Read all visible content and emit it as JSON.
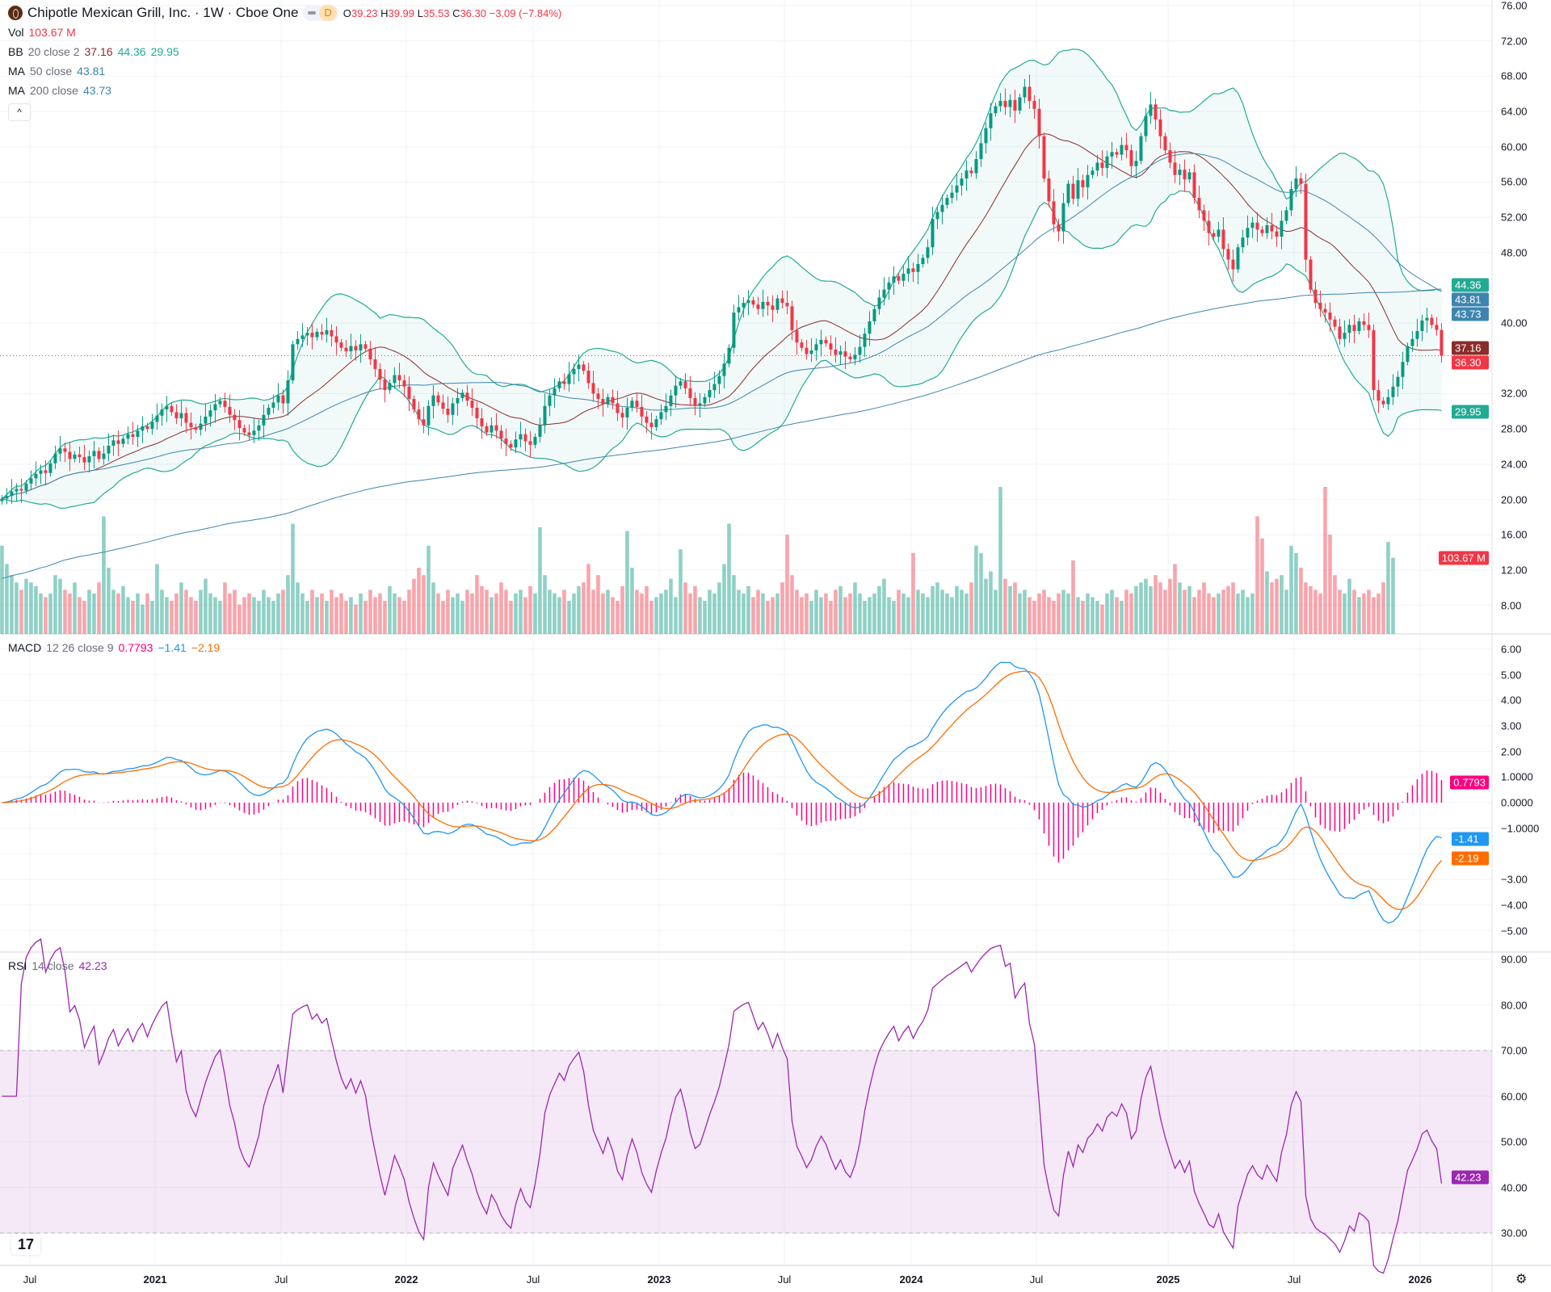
{
  "header": {
    "symbol": "Chipotle Mexican Grill, Inc. · 1W · Cboe One",
    "pill_label": "D",
    "ohlc": {
      "o_label": "O",
      "o": "39.23",
      "h_label": "H",
      "h": "39.99",
      "l_label": "L",
      "l": "35.53",
      "c_label": "C",
      "c": "36.30",
      "change": "−3.09 (−7.84%)"
    }
  },
  "legends": {
    "vol": {
      "name": "Vol",
      "value": "103.67 M"
    },
    "bb": {
      "name": "BB",
      "params": "20 close 2",
      "basis": "37.16",
      "upper": "44.36",
      "lower": "29.95"
    },
    "ma50": {
      "name": "MA",
      "params": "50 close",
      "value": "43.81"
    },
    "ma200": {
      "name": "MA",
      "params": "200 close",
      "value": "43.73"
    },
    "macd": {
      "name": "MACD",
      "params": "12 26 close 9",
      "hist": "0.7793",
      "macd": "−1.41",
      "signal": "−2.19"
    },
    "rsi": {
      "name": "RSI",
      "params": "14 close",
      "value": "42.23"
    }
  },
  "collapse_label": "^",
  "colors": {
    "up": "#089981",
    "down": "#F23645",
    "bb_band": "#22AB94",
    "bb_basis": "#8B2B2B",
    "ma": "#3D85B0",
    "macd": "#2196F3",
    "signal": "#FF6D00",
    "hist": "#FF0080",
    "rsi": "#9C27B0"
  },
  "price_axis": {
    "ticks": [
      "76.00",
      "72.00",
      "68.00",
      "64.00",
      "60.00",
      "56.00",
      "52.00",
      "48.00",
      "40.00",
      "32.00",
      "28.00",
      "24.00",
      "20.00",
      "16.00",
      "12.00",
      "8.00"
    ],
    "tags": [
      {
        "value": "44.36",
        "color": "#22AB94"
      },
      {
        "value": "43.81",
        "color": "#3D85B0"
      },
      {
        "value": "43.73",
        "color": "#3D85B0"
      },
      {
        "value": "37.16",
        "color": "#8B2B2B"
      },
      {
        "value": "36.30",
        "color": "#F23645"
      },
      {
        "value": "29.95",
        "color": "#22AB94"
      }
    ],
    "volume_tag": {
      "value": "103.67 M",
      "color": "#F23645"
    }
  },
  "macd_axis": {
    "ticks": [
      "6.00",
      "5.00",
      "4.00",
      "3.00",
      "2.00",
      "1.0000",
      "0.0000",
      "−1.0000",
      "−3.00",
      "−4.00",
      "−5.00"
    ],
    "tags": [
      {
        "value": "0.7793",
        "color": "#FF0080"
      },
      {
        "value": "-1.41",
        "label": "−1.41",
        "color": "#2196F3"
      },
      {
        "value": "-2.19",
        "label": "−2.19",
        "color": "#FF6D00"
      }
    ]
  },
  "rsi_axis": {
    "ticks": [
      "90.00",
      "80.00",
      "70.00",
      "60.00",
      "50.00",
      "40.00",
      "30.00"
    ],
    "upper_band": 70,
    "lower_band": 30,
    "tag": {
      "value": "42.23",
      "color": "#9C27B0"
    }
  },
  "time_axis": [
    {
      "label": "Jul",
      "year": false
    },
    {
      "label": "2021",
      "year": true
    },
    {
      "label": "Jul",
      "year": false
    },
    {
      "label": "2022",
      "year": true
    },
    {
      "label": "Jul",
      "year": false
    },
    {
      "label": "2023",
      "year": true
    },
    {
      "label": "Jul",
      "year": false
    },
    {
      "label": "2024",
      "year": true
    },
    {
      "label": "Jul",
      "year": false
    },
    {
      "label": "2025",
      "year": true
    },
    {
      "label": "Jul",
      "year": false
    },
    {
      "label": "2026",
      "year": true
    }
  ],
  "chart_data": {
    "type": "candlestick",
    "interval": "1W",
    "ylim": [
      6,
      76
    ],
    "closes": [
      20.1,
      20.4,
      20.9,
      21.2,
      21.0,
      21.8,
      22.4,
      22.9,
      23.3,
      23.0,
      24.1,
      25.2,
      25.8,
      25.4,
      24.6,
      25.1,
      24.8,
      24.2,
      24.9,
      25.5,
      24.6,
      25.2,
      26.1,
      26.7,
      26.3,
      26.9,
      27.4,
      27.1,
      27.8,
      28.3,
      28.0,
      28.8,
      29.5,
      30.2,
      30.6,
      29.9,
      29.2,
      29.8,
      28.7,
      28.2,
      27.9,
      28.6,
      29.4,
      30.1,
      30.8,
      31.2,
      30.5,
      29.6,
      29.0,
      28.1,
      27.6,
      27.3,
      27.8,
      28.4,
      29.6,
      30.4,
      31.0,
      31.8,
      30.9,
      33.5,
      37.6,
      38.2,
      38.6,
      38.9,
      38.4,
      39.0,
      38.7,
      39.2,
      38.5,
      37.8,
      37.2,
      36.8,
      37.4,
      36.9,
      37.6,
      37.1,
      35.9,
      34.8,
      33.6,
      32.4,
      33.2,
      34.1,
      33.5,
      32.8,
      31.4,
      30.2,
      29.1,
      28.4,
      30.6,
      31.8,
      31.0,
      30.3,
      29.6,
      30.9,
      31.5,
      32.1,
      31.2,
      30.4,
      29.2,
      28.3,
      27.6,
      28.4,
      27.8,
      26.9,
      26.3,
      25.9,
      26.8,
      27.4,
      26.6,
      26.2,
      27.1,
      28.4,
      30.6,
      31.8,
      32.6,
      33.4,
      33.1,
      34.2,
      34.8,
      35.3,
      34.6,
      33.2,
      32.0,
      31.4,
      30.8,
      31.6,
      30.9,
      29.8,
      29.3,
      30.4,
      31.2,
      30.5,
      29.4,
      28.7,
      28.2,
      29.1,
      29.9,
      30.6,
      31.8,
      32.9,
      33.4,
      32.6,
      31.5,
      30.7,
      30.9,
      31.6,
      32.4,
      33.1,
      34.0,
      35.4,
      37.2,
      41.2,
      41.8,
      42.3,
      42.6,
      42.1,
      41.6,
      42.4,
      42.0,
      41.5,
      42.8,
      42.3,
      41.9,
      39.2,
      37.8,
      37.2,
      36.5,
      36.9,
      37.6,
      38.1,
      37.7,
      37.0,
      36.4,
      36.8,
      36.2,
      35.9,
      36.4,
      37.3,
      38.8,
      40.2,
      41.6,
      42.9,
      43.8,
      44.6,
      45.3,
      44.8,
      45.6,
      46.2,
      45.8,
      46.7,
      47.4,
      48.6,
      51.8,
      52.6,
      53.4,
      54.2,
      54.8,
      55.6,
      56.4,
      57.3,
      57.0,
      58.6,
      60.4,
      62.1,
      63.8,
      64.6,
      65.2,
      64.5,
      65.3,
      64.1,
      65.6,
      66.8,
      65.2,
      64.3,
      61.2,
      56.4,
      53.8,
      51.2,
      50.4,
      53.6,
      55.8,
      54.1,
      56.2,
      55.4,
      56.8,
      57.3,
      58.2,
      57.6,
      58.9,
      59.4,
      59.1,
      60.2,
      59.6,
      57.8,
      58.4,
      61.2,
      63.5,
      64.8,
      63.1,
      61.2,
      59.6,
      58.2,
      56.8,
      57.4,
      56.3,
      57.1,
      54.2,
      52.8,
      51.6,
      50.2,
      49.8,
      50.6,
      48.4,
      47.2,
      46.1,
      48.6,
      49.7,
      50.8,
      51.4,
      50.6,
      50.2,
      51.1,
      50.4,
      49.8,
      51.6,
      52.8,
      55.2,
      56.4,
      55.8,
      47.2,
      43.8,
      42.3,
      41.6,
      41.2,
      40.4,
      39.6,
      38.2,
      38.9,
      39.8,
      39.1,
      40.2,
      39.8,
      39.2,
      32.4,
      31.2,
      30.8,
      31.6,
      32.8,
      33.9,
      35.6,
      37.4,
      38.2,
      39.1,
      40.3,
      40.6,
      39.8,
      39.23,
      36.3
    ],
    "last_bar": {
      "open": 39.23,
      "high": 39.99,
      "low": 35.53,
      "close": 36.3
    },
    "volumes_millions": [
      120,
      95,
      80,
      70,
      60,
      75,
      70,
      65,
      55,
      50,
      55,
      80,
      75,
      60,
      55,
      70,
      50,
      45,
      60,
      55,
      70,
      160,
      90,
      60,
      55,
      65,
      50,
      45,
      55,
      40,
      55,
      45,
      95,
      60,
      50,
      45,
      55,
      70,
      60,
      50,
      45,
      60,
      75,
      55,
      50,
      45,
      70,
      55,
      60,
      40,
      50,
      55,
      50,
      45,
      60,
      50,
      45,
      55,
      60,
      80,
      150,
      70,
      55,
      45,
      60,
      50,
      55,
      45,
      60,
      50,
      55,
      45,
      50,
      40,
      55,
      45,
      60,
      50,
      55,
      45,
      65,
      55,
      50,
      45,
      60,
      75,
      90,
      80,
      120,
      70,
      55,
      45,
      60,
      50,
      55,
      45,
      60,
      55,
      80,
      65,
      60,
      50,
      55,
      70,
      60,
      45,
      55,
      60,
      50,
      65,
      55,
      145,
      80,
      60,
      55,
      50,
      60,
      45,
      55,
      65,
      70,
      95,
      60,
      80,
      55,
      60,
      50,
      45,
      65,
      140,
      90,
      60,
      55,
      65,
      45,
      50,
      55,
      60,
      75,
      50,
      115,
      70,
      55,
      65,
      50,
      45,
      60,
      55,
      70,
      95,
      150,
      80,
      60,
      55,
      65,
      50,
      60,
      55,
      45,
      50,
      55,
      70,
      135,
      80,
      60,
      50,
      55,
      45,
      60,
      50,
      55,
      45,
      60,
      65,
      50,
      55,
      70,
      55,
      45,
      50,
      55,
      65,
      75,
      50,
      45,
      60,
      55,
      50,
      110,
      60,
      55,
      50,
      65,
      70,
      60,
      55,
      50,
      65,
      60,
      55,
      70,
      120,
      110,
      75,
      85,
      60,
      200,
      75,
      65,
      70,
      55,
      60,
      50,
      45,
      55,
      60,
      50,
      45,
      55,
      60,
      55,
      100,
      50,
      45,
      55,
      50,
      45,
      40,
      55,
      60,
      50,
      45,
      60,
      55,
      65,
      70,
      75,
      65,
      80,
      70,
      60,
      75,
      95,
      70,
      60,
      65,
      50,
      60,
      70,
      55,
      50,
      55,
      60,
      65,
      70,
      55,
      60,
      50,
      55,
      160,
      130,
      85,
      70,
      75,
      80,
      60,
      120,
      110,
      90,
      70,
      65,
      60,
      55,
      200,
      135,
      80,
      60,
      55,
      75,
      60,
      50,
      55,
      60,
      50,
      55,
      70,
      125,
      103.67
    ]
  }
}
